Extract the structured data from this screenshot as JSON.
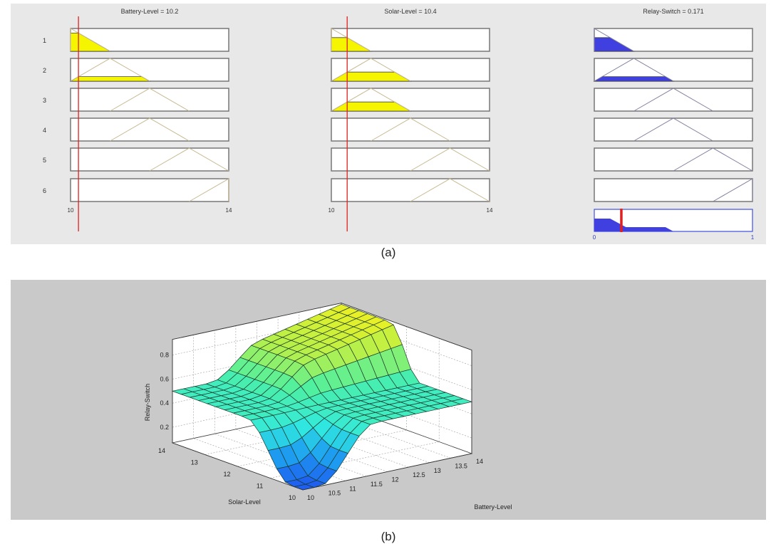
{
  "chart_data": [
    {
      "type": "fuzzy-rule-viewer",
      "caption": "(a)",
      "inputs": [
        {
          "name": "Battery-Level",
          "value": 10.2,
          "title": "Battery-Level = 10.2",
          "range": [
            10,
            14
          ],
          "range_labels": [
            "10",
            "14"
          ],
          "rule_mfs": [
            [
              10,
              10,
              11
            ],
            [
              10,
              11,
              12
            ],
            [
              11,
              12,
              13
            ],
            [
              11,
              12,
              13
            ],
            [
              12,
              13,
              14
            ],
            [
              13,
              14,
              14
            ]
          ],
          "firing": [
            0.8,
            0.2,
            0,
            0,
            0,
            0
          ]
        },
        {
          "name": "Solar-Level",
          "value": 10.4,
          "title": "Solar-Level = 10.4",
          "range": [
            10,
            14
          ],
          "range_labels": [
            "10",
            "14"
          ],
          "rule_mfs": [
            [
              10,
              10,
              11
            ],
            [
              10,
              11,
              12
            ],
            [
              10,
              11,
              12
            ],
            [
              11,
              12,
              13
            ],
            [
              12,
              13,
              14
            ],
            [
              12,
              13,
              14
            ]
          ],
          "firing": [
            0.6,
            0.4,
            0.4,
            0,
            0,
            0
          ]
        }
      ],
      "output": {
        "name": "Relay-Switch",
        "value": 0.171,
        "title": "Relay-Switch = 0.171",
        "range": [
          0,
          1
        ],
        "range_labels": [
          "0",
          "1"
        ],
        "rule_mfs": [
          [
            0,
            0,
            0.25
          ],
          [
            0,
            0.25,
            0.5
          ],
          [
            0.25,
            0.5,
            0.75
          ],
          [
            0.25,
            0.5,
            0.75
          ],
          [
            0.5,
            0.75,
            1
          ],
          [
            0.75,
            1,
            1
          ]
        ],
        "firing": [
          0.6,
          0.2,
          0,
          0,
          0,
          0
        ]
      },
      "rule_numbers": [
        "1",
        "2",
        "3",
        "4",
        "5",
        "6"
      ],
      "colors": {
        "input_fill": "#f5f500",
        "output_fill": "#4040e0",
        "indicator": "#e02020"
      }
    },
    {
      "type": "surface",
      "caption": "(b)",
      "xlabel": "Battery-Level",
      "ylabel": "Solar-Level",
      "zlabel": "Relay-Switch",
      "xlim": [
        10,
        14
      ],
      "ylim": [
        10,
        14
      ],
      "zlim": [
        0.07,
        0.93
      ],
      "x_ticks": [
        "10",
        "10.5",
        "11",
        "11.5",
        "12",
        "12.5",
        "13",
        "13.5",
        "14"
      ],
      "y_ticks": [
        "10",
        "11",
        "12",
        "13",
        "14"
      ],
      "z_ticks": [
        "0.2",
        "0.4",
        "0.6",
        "0.8"
      ],
      "grid": true,
      "description_values": {
        "baseline": 0.5,
        "min": 0.07,
        "max": 0.92
      },
      "colormap": [
        "#1e5ef0",
        "#1ea0f0",
        "#30e8e0",
        "#50f0a0",
        "#b0f050",
        "#eef020"
      ]
    }
  ]
}
